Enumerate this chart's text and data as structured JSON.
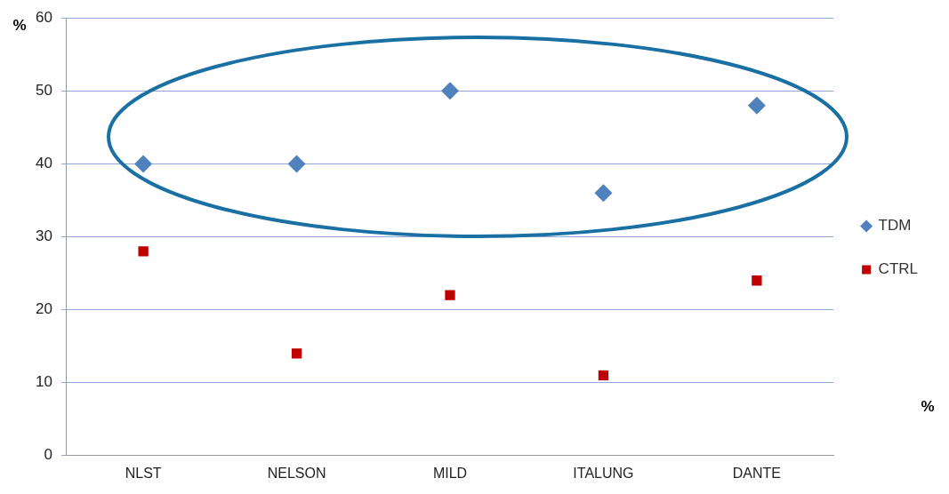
{
  "chart_data": {
    "type": "scatter",
    "ylabel": "%",
    "categories": [
      "NLST",
      "NELSON",
      "MILD",
      "ITALUNG",
      "DANTE"
    ],
    "series": [
      {
        "name": "TDM",
        "color": "#4f81bd",
        "marker": "diamond",
        "values": [
          40,
          40,
          50,
          36,
          48
        ]
      },
      {
        "name": "CTRL",
        "color": "#c00000",
        "marker": "square",
        "values": [
          28,
          14,
          22,
          11,
          24
        ]
      }
    ],
    "ylim": [
      0,
      60
    ],
    "yticks": [
      0,
      10,
      20,
      30,
      40,
      50,
      60
    ],
    "grid": "y",
    "legend": "right",
    "annotations": [
      "%"
    ]
  }
}
